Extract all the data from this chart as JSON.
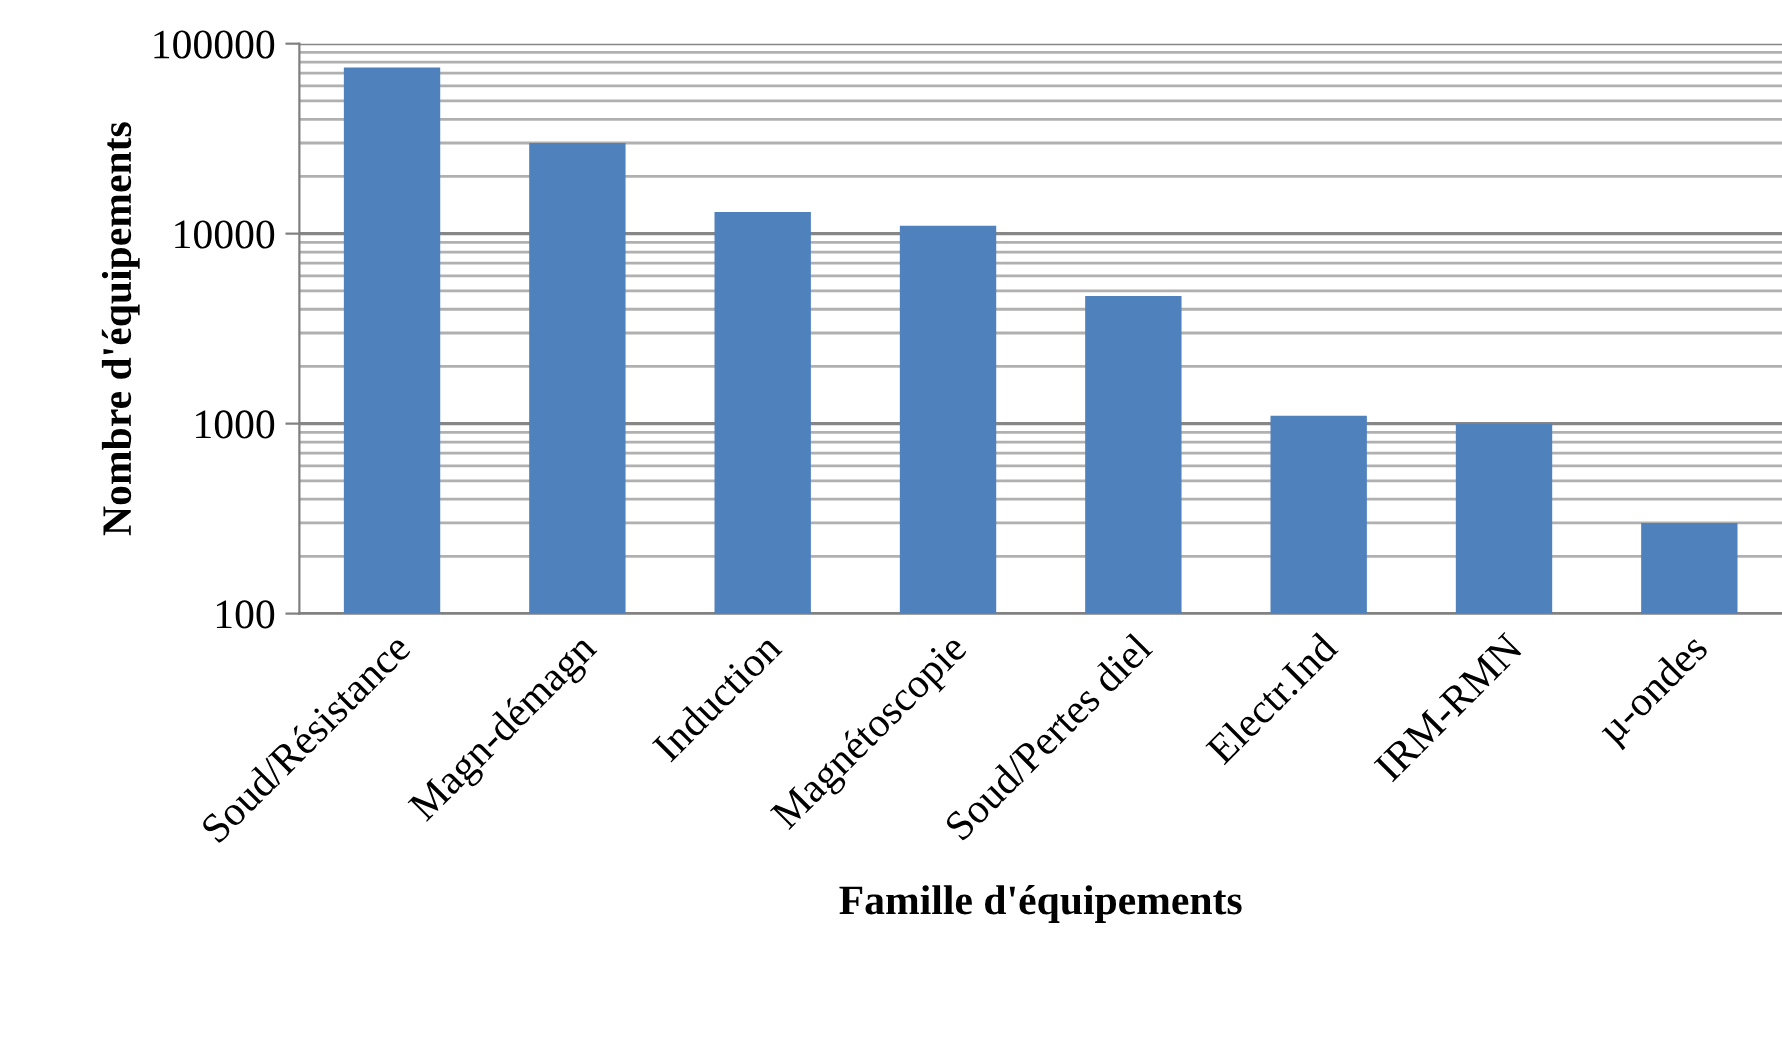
{
  "chart_data": {
    "type": "bar",
    "xlabel": "Famille d'équipements",
    "ylabel": "Nombre d'équipements",
    "categories": [
      "Soud/Résistance",
      "Magn-démagn",
      "Induction",
      "Magnétoscopie",
      "Soud/Pertes diel",
      "Electr.Ind",
      "IRM-RMN",
      "µ-ondes"
    ],
    "values": [
      75000,
      30000,
      13000,
      11000,
      4700,
      1100,
      1000,
      300
    ],
    "color": "#4f81bd",
    "log": "y",
    "ylim": [
      100,
      100000
    ],
    "yticks": [
      100,
      1000,
      10000,
      100000
    ],
    "grid": "y"
  }
}
